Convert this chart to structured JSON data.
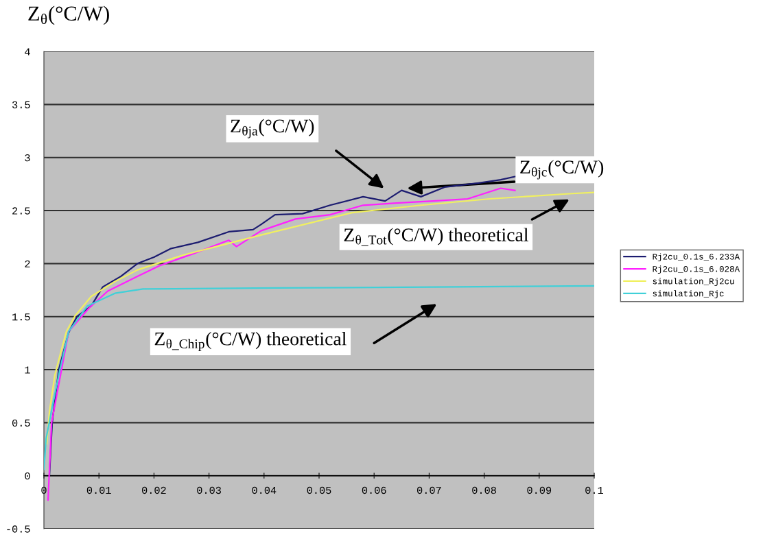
{
  "chart_data": {
    "type": "line",
    "ylabel": "Z$_{θ}$(°C/W)",
    "xlim": [
      0,
      0.1
    ],
    "ylim": [
      -0.5,
      4
    ],
    "xticks": [
      0,
      0.01,
      0.02,
      0.03,
      0.04,
      0.05,
      0.06,
      0.07,
      0.08,
      0.09,
      0.1
    ],
    "yticks": [
      -0.5,
      0,
      0.5,
      1,
      1.5,
      2,
      2.5,
      3,
      3.5,
      4
    ],
    "grid": "y",
    "legend": "right",
    "marker": "none",
    "line_style": "solid",
    "series": [
      {
        "name": "Rj2cu_0.1s_6.233A",
        "color": "#1c1c70",
        "x": [
          0.001,
          0.0015,
          0.0027,
          0.0045,
          0.006,
          0.0086,
          0.0107,
          0.014,
          0.017,
          0.02,
          0.023,
          0.028,
          0.0336,
          0.038,
          0.0395,
          0.042,
          0.047,
          0.052,
          0.058,
          0.062,
          0.065,
          0.0685,
          0.0728,
          0.079,
          0.083,
          0.0856
        ],
        "values": [
          0,
          0.5,
          1.0,
          1.35,
          1.5,
          1.6,
          1.78,
          1.88,
          2.0,
          2.06,
          2.14,
          2.2,
          2.3,
          2.32,
          2.37,
          2.46,
          2.47,
          2.55,
          2.63,
          2.59,
          2.69,
          2.63,
          2.72,
          2.76,
          2.79,
          2.82
        ]
      },
      {
        "name": "Rj2cu_0.1s_6.028A",
        "color": "#ff20ff",
        "x": [
          0.00075,
          0.0014,
          0.0032,
          0.0045,
          0.0082,
          0.0116,
          0.017,
          0.021,
          0.027,
          0.0336,
          0.035,
          0.0395,
          0.0457,
          0.052,
          0.058,
          0.064,
          0.0707,
          0.077,
          0.083,
          0.0856
        ],
        "values": [
          -0.23,
          0.5,
          1.0,
          1.36,
          1.58,
          1.74,
          1.88,
          1.98,
          2.09,
          2.22,
          2.16,
          2.31,
          2.42,
          2.46,
          2.55,
          2.57,
          2.59,
          2.61,
          2.71,
          2.69
        ]
      },
      {
        "name": "simulation_Rj2cu",
        "color": "#f0f060",
        "x": [
          0.0005,
          0.001,
          0.002,
          0.003,
          0.0041,
          0.0057,
          0.0086,
          0.0129,
          0.017,
          0.0253,
          0.0336,
          0.0395,
          0.056,
          0.0685,
          0.081,
          0.096,
          0.1
        ],
        "values": [
          0.3,
          0.6,
          0.95,
          1.15,
          1.36,
          1.51,
          1.69,
          1.83,
          1.94,
          2.08,
          2.19,
          2.27,
          2.48,
          2.55,
          2.61,
          2.66,
          2.67
        ]
      },
      {
        "name": "simulation_Rjc",
        "color": "#40d0d8",
        "x": [
          0,
          0.0004,
          0.0016,
          0.0029,
          0.0045,
          0.0079,
          0.0129,
          0.018,
          0.042,
          0.075,
          0.1
        ],
        "values": [
          0.06,
          0.35,
          0.67,
          1.0,
          1.36,
          1.6,
          1.72,
          1.76,
          1.77,
          1.78,
          1.79
        ]
      }
    ],
    "annotations": [
      "Z$_{θja}$(°C/W)",
      "Z$_{θjc}$(°C/W)",
      "Z$_{θ_Tot}$(°C/W) theoretical",
      "Z$_{θ_Chip}$(°C/W) theoretical"
    ]
  }
}
